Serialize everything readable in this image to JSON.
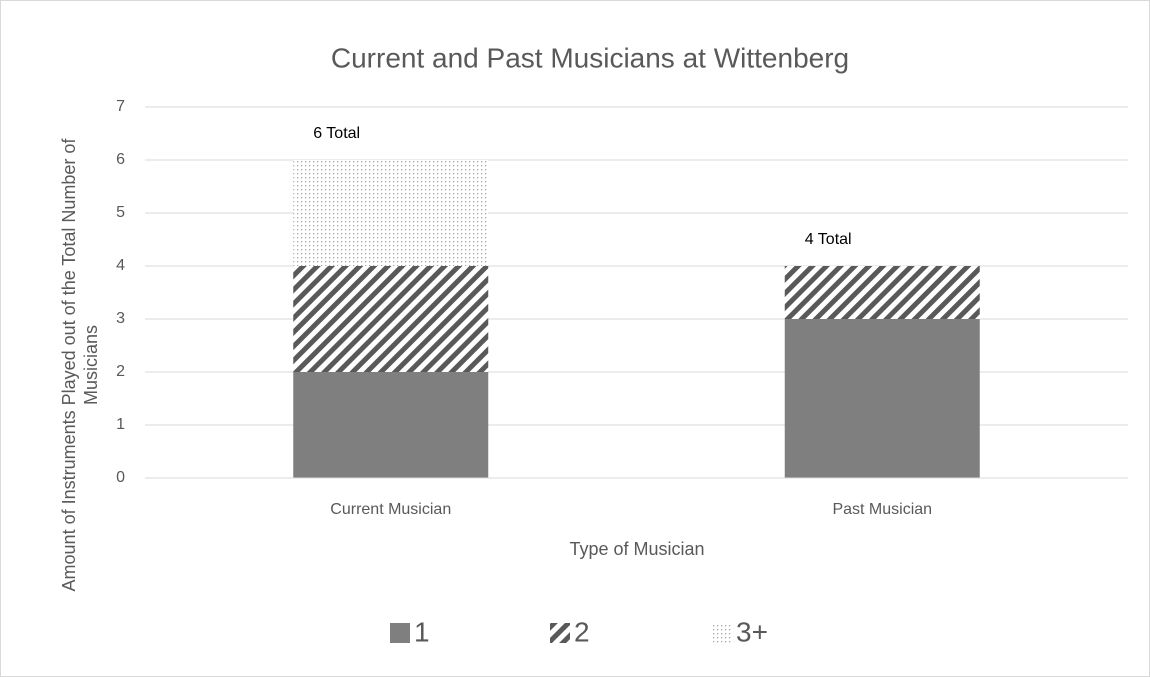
{
  "chart_data": {
    "type": "stacked_bar",
    "title": "Current and Past Musicians at Wittenberg",
    "xlabel": "Type of Musician",
    "ylabel": "Amount of Instruments Played out of the Total Number of Musicians",
    "categories": [
      "Current Musician",
      "Past Musician"
    ],
    "series": [
      {
        "name": "1",
        "color": "#7f7f7f",
        "pattern": "solid",
        "values": [
          2,
          3
        ]
      },
      {
        "name": "2",
        "color": "#595959",
        "pattern": "diagonal",
        "values": [
          2,
          1
        ]
      },
      {
        "name": "3+",
        "color": "#a6a6a6",
        "pattern": "dots",
        "values": [
          2,
          0
        ]
      }
    ],
    "annotations": [
      "6 Total",
      "4 Total"
    ],
    "ylim": [
      0,
      7
    ],
    "yticks": [
      0,
      1,
      2,
      3,
      4,
      5,
      6,
      7
    ],
    "grid": true,
    "legend": "bottom"
  }
}
